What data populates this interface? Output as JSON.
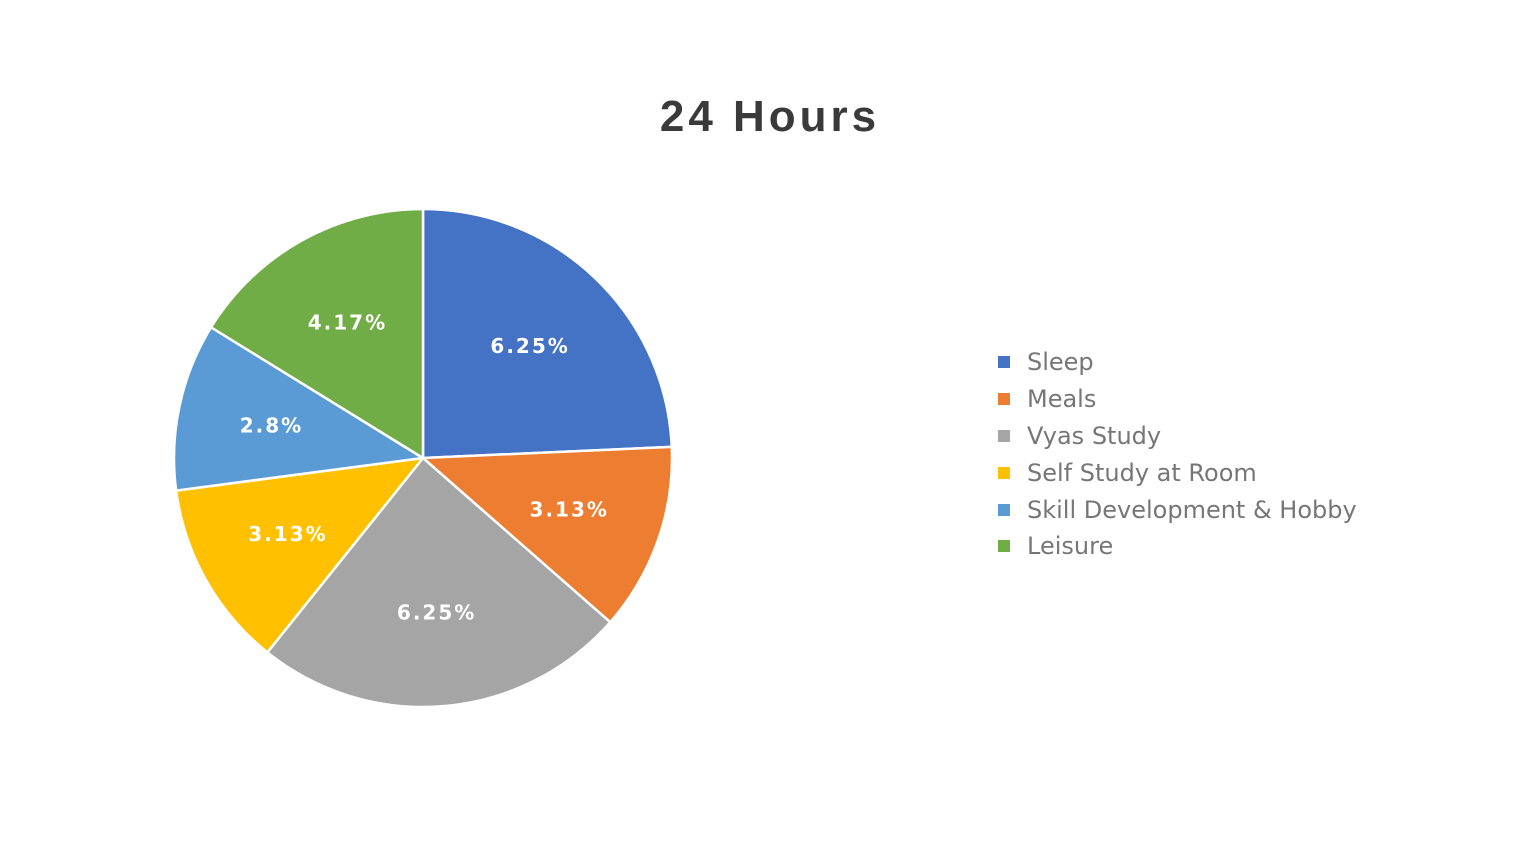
{
  "chart_data": {
    "type": "pie",
    "title": "24 Hours",
    "legend_position": "right",
    "categories": [
      "Sleep",
      "Meals",
      "Vyas Study",
      "Self Study at Room",
      "Skill Development & Hobby",
      "Leisure"
    ],
    "values": [
      6.25,
      3.13,
      6.25,
      3.13,
      2.8,
      4.17
    ],
    "labels": [
      "6.25%",
      "3.13%",
      "6.25%",
      "3.13%",
      "2.8%",
      "4.17%"
    ],
    "colors": [
      "#4472C4",
      "#ED7D31",
      "#A5A5A5",
      "#FFC000",
      "#5B9BD5",
      "#70AD47"
    ]
  }
}
